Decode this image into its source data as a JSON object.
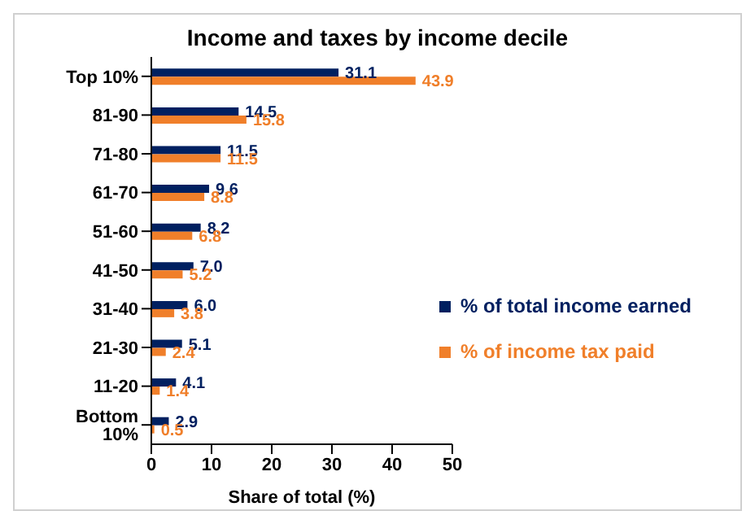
{
  "chart_data": {
    "type": "bar",
    "orientation": "horizontal",
    "title": "Income and taxes by income decile",
    "xlabel": "Share of total (%)",
    "categories": [
      "Top 10%",
      "81-90",
      "71-80",
      "61-70",
      "51-60",
      "41-50",
      "31-40",
      "21-30",
      "11-20",
      "Bottom 10%"
    ],
    "series": [
      {
        "name": "% of total income earned",
        "color": "#002060",
        "values": [
          31.1,
          14.5,
          11.5,
          9.6,
          8.2,
          7.0,
          6.0,
          5.1,
          4.1,
          2.9
        ],
        "value_labels": [
          "31.1",
          "14.5",
          "11.5",
          "9.6",
          "8.2",
          "7.0",
          "6.0",
          "5.1",
          "4.1",
          "2.9"
        ]
      },
      {
        "name": "% of income tax paid",
        "color": "#f07f2a",
        "values": [
          43.9,
          15.8,
          11.5,
          8.8,
          6.8,
          5.2,
          3.8,
          2.4,
          1.4,
          0.5
        ],
        "value_labels": [
          "43.9",
          "15.8",
          "11.5",
          "8.8",
          "6.8",
          "5.2",
          "3.8",
          "2.4",
          "1.4",
          "0.5"
        ]
      }
    ],
    "xlim": [
      0,
      50
    ],
    "xticks": [
      0,
      10,
      20,
      30,
      40,
      50
    ],
    "legend": "right",
    "grid": false
  }
}
